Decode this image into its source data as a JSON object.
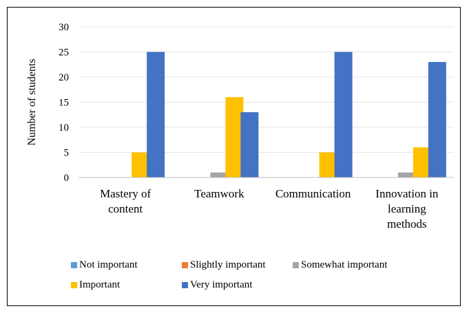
{
  "chart_data": {
    "type": "bar",
    "ylabel": "Number of students",
    "ylim": [
      0,
      30
    ],
    "yticks": [
      0,
      5,
      10,
      15,
      20,
      25,
      30
    ],
    "grid": true,
    "legend_position": "bottom",
    "categories": [
      [
        "Mastery of",
        "content"
      ],
      [
        "Teamwork"
      ],
      [
        "Communication"
      ],
      [
        "Innovation in",
        "learning",
        "methods"
      ]
    ],
    "series": [
      {
        "name": "Not important",
        "color": "#5B9BD5",
        "values": [
          0,
          0,
          0,
          0
        ]
      },
      {
        "name": "Slightly important",
        "color": "#ED7D31",
        "values": [
          0,
          0,
          0,
          0
        ]
      },
      {
        "name": "Somewhat important",
        "color": "#A5A5A5",
        "values": [
          0,
          1,
          0,
          1
        ]
      },
      {
        "name": "Important",
        "color": "#FFC000",
        "values": [
          5,
          16,
          5,
          6
        ]
      },
      {
        "name": "Very important",
        "color": "#4472C4",
        "values": [
          25,
          13,
          25,
          23
        ]
      }
    ]
  }
}
